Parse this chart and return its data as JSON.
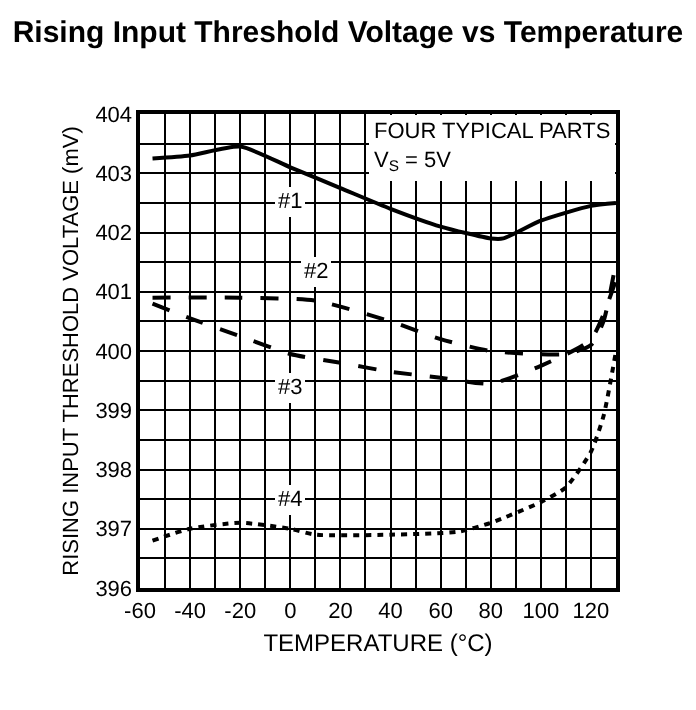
{
  "chart_data": {
    "type": "line",
    "title": "Rising Input Threshold Voltage vs Temperature",
    "xlabel": "TEMPERATURE (°C)",
    "ylabel": "RISING INPUT THRESHOLD VOLTAGE (mV)",
    "xlim": [
      -60,
      130
    ],
    "xticks": [
      -60,
      {
        "value": -50,
        "label": null
      },
      -40,
      {
        "value": -30,
        "label": null
      },
      -20,
      {
        "value": -10,
        "label": null
      },
      0,
      {
        "value": 10,
        "label": null
      },
      20,
      {
        "value": 30,
        "label": null
      },
      40,
      {
        "value": 50,
        "label": null
      },
      60,
      {
        "value": 70,
        "label": null
      },
      80,
      {
        "value": 90,
        "label": null
      },
      100,
      {
        "value": 110,
        "label": null
      },
      120,
      {
        "value": 130,
        "label": null
      }
    ],
    "ylim": [
      396,
      404
    ],
    "yticks": [
      396,
      {
        "value": 396.5,
        "label": null
      },
      397,
      {
        "value": 397.5,
        "label": null
      },
      398,
      {
        "value": 398.5,
        "label": null
      },
      399,
      {
        "value": 399.5,
        "label": null
      },
      400,
      {
        "value": 400.5,
        "label": null
      },
      401,
      {
        "value": 401.5,
        "label": null
      },
      402,
      {
        "value": 402.5,
        "label": null
      },
      403,
      {
        "value": 403.5,
        "label": null
      },
      404
    ],
    "grid": true,
    "marker": "none",
    "series": [
      {
        "name": "#1",
        "color": "#000000",
        "line_style": "solid",
        "x": [
          -55,
          -40,
          -20,
          0,
          20,
          40,
          60,
          80,
          85,
          100,
          120,
          130
        ],
        "values": [
          403.25,
          403.3,
          403.45,
          403.1,
          402.75,
          402.4,
          402.1,
          401.9,
          401.9,
          402.2,
          402.45,
          402.5
        ]
      },
      {
        "name": "#2",
        "color": "#000000",
        "line_style": "dashed",
        "x": [
          -55,
          -20,
          10,
          40,
          60,
          80,
          110,
          120,
          125,
          130
        ],
        "values": [
          400.9,
          400.9,
          400.85,
          400.5,
          400.2,
          400.0,
          399.95,
          400.1,
          400.5,
          401.5
        ]
      },
      {
        "name": "#3",
        "color": "#000000",
        "line_style": "dashed",
        "x": [
          -55,
          -40,
          -20,
          0,
          20,
          40,
          60,
          80,
          100,
          120,
          130
        ],
        "values": [
          400.8,
          400.55,
          400.25,
          399.95,
          399.8,
          399.65,
          399.55,
          399.45,
          399.75,
          400.2,
          401.2
        ]
      },
      {
        "name": "#4",
        "color": "#000000",
        "line_style": "dotted",
        "x": [
          -55,
          -40,
          -20,
          0,
          10,
          40,
          67,
          80,
          100,
          110,
          120,
          125,
          130
        ],
        "values": [
          396.8,
          397.0,
          397.1,
          397.0,
          396.9,
          396.9,
          396.95,
          397.1,
          397.45,
          397.7,
          398.3,
          398.9,
          400.0
        ]
      }
    ],
    "annotations": [
      "FOUR TYPICAL PARTS",
      "V$_{S}$ = 5V"
    ]
  }
}
